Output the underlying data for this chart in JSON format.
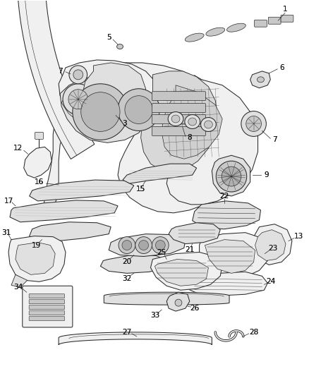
{
  "bg_color": "#ffffff",
  "line_color": "#2a2a2a",
  "label_color": "#1a1a1a",
  "lw": 0.75,
  "figsize": [
    4.38,
    5.33
  ],
  "dpi": 100
}
